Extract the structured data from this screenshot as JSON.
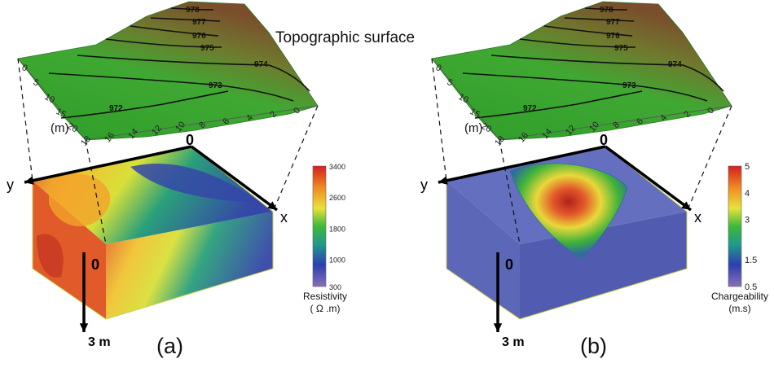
{
  "title": "Topographic surface",
  "contours": [
    "978",
    "977",
    "976",
    "975",
    "974",
    "973",
    "972"
  ],
  "y_ticks": [
    "0",
    "5",
    "10",
    "15",
    "20"
  ],
  "y_unit": "(m)",
  "x_ticks": [
    "18",
    "16",
    "14",
    "12",
    "10",
    "8",
    "6",
    "4",
    "2",
    "0"
  ],
  "axes": {
    "y": "y",
    "x": "x",
    "origin_top": "0",
    "origin_mid": "0",
    "depth": "3 m"
  },
  "panels": [
    {
      "label": "(a)",
      "colorbar": {
        "title": "Resistivity",
        "unit": "( Ω .m)",
        "ticks": [
          "3400",
          "2600",
          "1800",
          "1000",
          "300"
        ],
        "tick_fractions": [
          1.0,
          0.742,
          0.484,
          0.226,
          0.0
        ]
      }
    },
    {
      "label": "(b)",
      "colorbar": {
        "title": "Chargeability",
        "unit": "(m.s)",
        "ticks": [
          "5",
          "4",
          "3",
          "1.5",
          "0.5"
        ],
        "tick_fractions": [
          1.0,
          0.778,
          0.556,
          0.222,
          0.0
        ]
      }
    }
  ],
  "colors": {
    "terrain_low": "#2e9e2a",
    "terrain_high": "#7a4e2c",
    "block_blue": "#3b47a8",
    "anomaly_red": "#d9401e",
    "anomaly_yellow": "#e8e33a"
  }
}
